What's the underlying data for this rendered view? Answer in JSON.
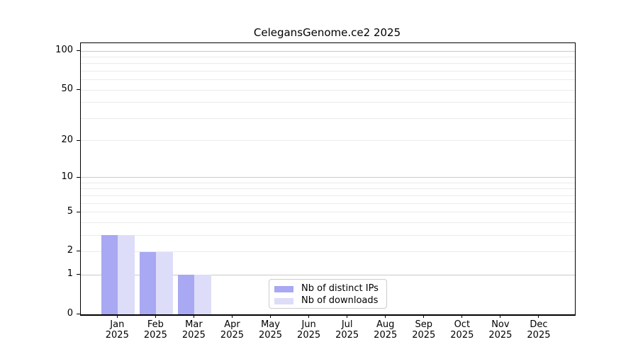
{
  "title": "CelegansGenome.ce2 2025",
  "chart_data": {
    "type": "bar",
    "title": "CelegansGenome.ce2 2025",
    "categories": [
      "Jan 2025",
      "Feb 2025",
      "Mar 2025",
      "Apr 2025",
      "May 2025",
      "Jun 2025",
      "Jul 2025",
      "Aug 2025",
      "Sep 2025",
      "Oct 2025",
      "Nov 2025",
      "Dec 2025"
    ],
    "x_tick_months": [
      "Jan",
      "Feb",
      "Mar",
      "Apr",
      "May",
      "Jun",
      "Jul",
      "Aug",
      "Sep",
      "Oct",
      "Nov",
      "Dec"
    ],
    "x_tick_year": "2025",
    "series": [
      {
        "name": "Nb of distinct IPs",
        "color": "#a8a8f3",
        "values": [
          3,
          2,
          1,
          0,
          0,
          0,
          0,
          0,
          0,
          0,
          0,
          0
        ]
      },
      {
        "name": "Nb of downloads",
        "color": "#ddddf9",
        "values": [
          3,
          2,
          1,
          0,
          0,
          0,
          0,
          0,
          0,
          0,
          0,
          0
        ]
      }
    ],
    "yscale": "log1p",
    "ylim": [
      0,
      115
    ],
    "y_major_ticks": [
      0,
      1,
      2,
      5,
      10,
      20,
      50,
      100
    ],
    "y_decade_gridlines": [
      1,
      10,
      100
    ],
    "y_minor_gridlines": [
      2,
      3,
      4,
      5,
      6,
      7,
      8,
      9,
      20,
      30,
      40,
      50,
      60,
      70,
      80,
      90
    ],
    "grid": "horizontal",
    "legend_position": "inside-bottom-center",
    "colors": {
      "decade_gridline": "#c9c9c9",
      "minor_gridline": "#ebebeb",
      "axis": "#000000",
      "background": "#ffffff",
      "legend_border": "#cccccc",
      "text": "#000000"
    }
  }
}
